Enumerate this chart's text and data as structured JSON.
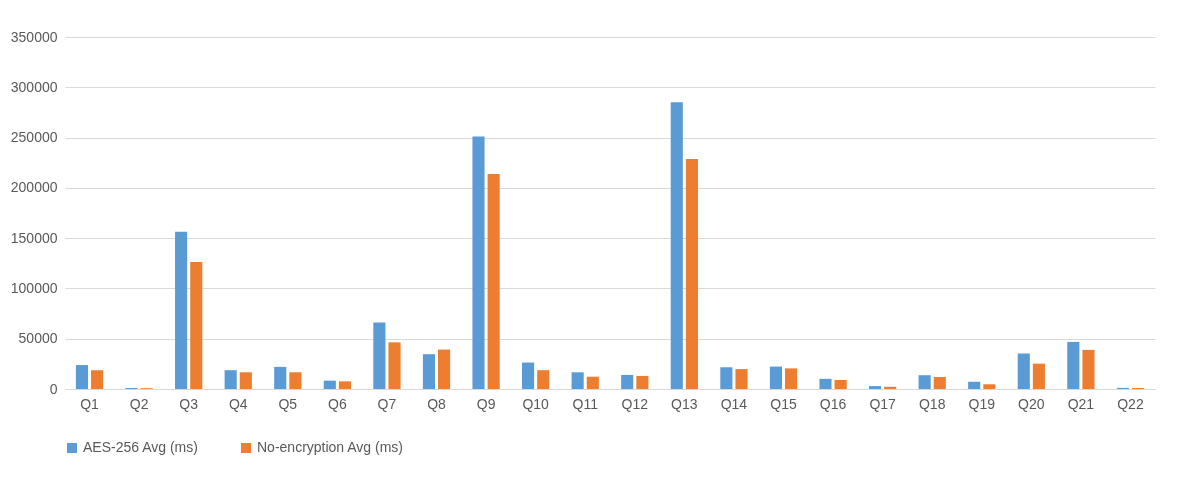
{
  "chart_data": {
    "type": "bar",
    "categories": [
      "Q1",
      "Q2",
      "Q3",
      "Q4",
      "Q5",
      "Q6",
      "Q7",
      "Q8",
      "Q9",
      "Q10",
      "Q11",
      "Q12",
      "Q13",
      "Q14",
      "Q15",
      "Q16",
      "Q17",
      "Q18",
      "Q19",
      "Q20",
      "Q21",
      "Q22"
    ],
    "series": [
      {
        "name": "AES-256 Avg (ms)",
        "color": "#5b9bd5",
        "values": [
          23800,
          1000,
          156400,
          18700,
          22000,
          8300,
          66200,
          34600,
          251000,
          26300,
          16600,
          14000,
          285100,
          21600,
          22300,
          10100,
          2900,
          13700,
          7200,
          35300,
          46800,
          1100
        ]
      },
      {
        "name": "No-encryption Avg (ms)",
        "color": "#ed7d31",
        "values": [
          18700,
          800,
          126200,
          16600,
          16600,
          7600,
          46400,
          39200,
          213700,
          18700,
          12200,
          13000,
          228800,
          19800,
          20500,
          9000,
          2200,
          11900,
          4700,
          25200,
          38900,
          1000
        ]
      }
    ],
    "ylim": [
      0,
      350000
    ],
    "yticks": [
      0,
      50000,
      100000,
      150000,
      200000,
      250000,
      300000,
      350000
    ],
    "grid": "y",
    "legend": "bottom"
  }
}
